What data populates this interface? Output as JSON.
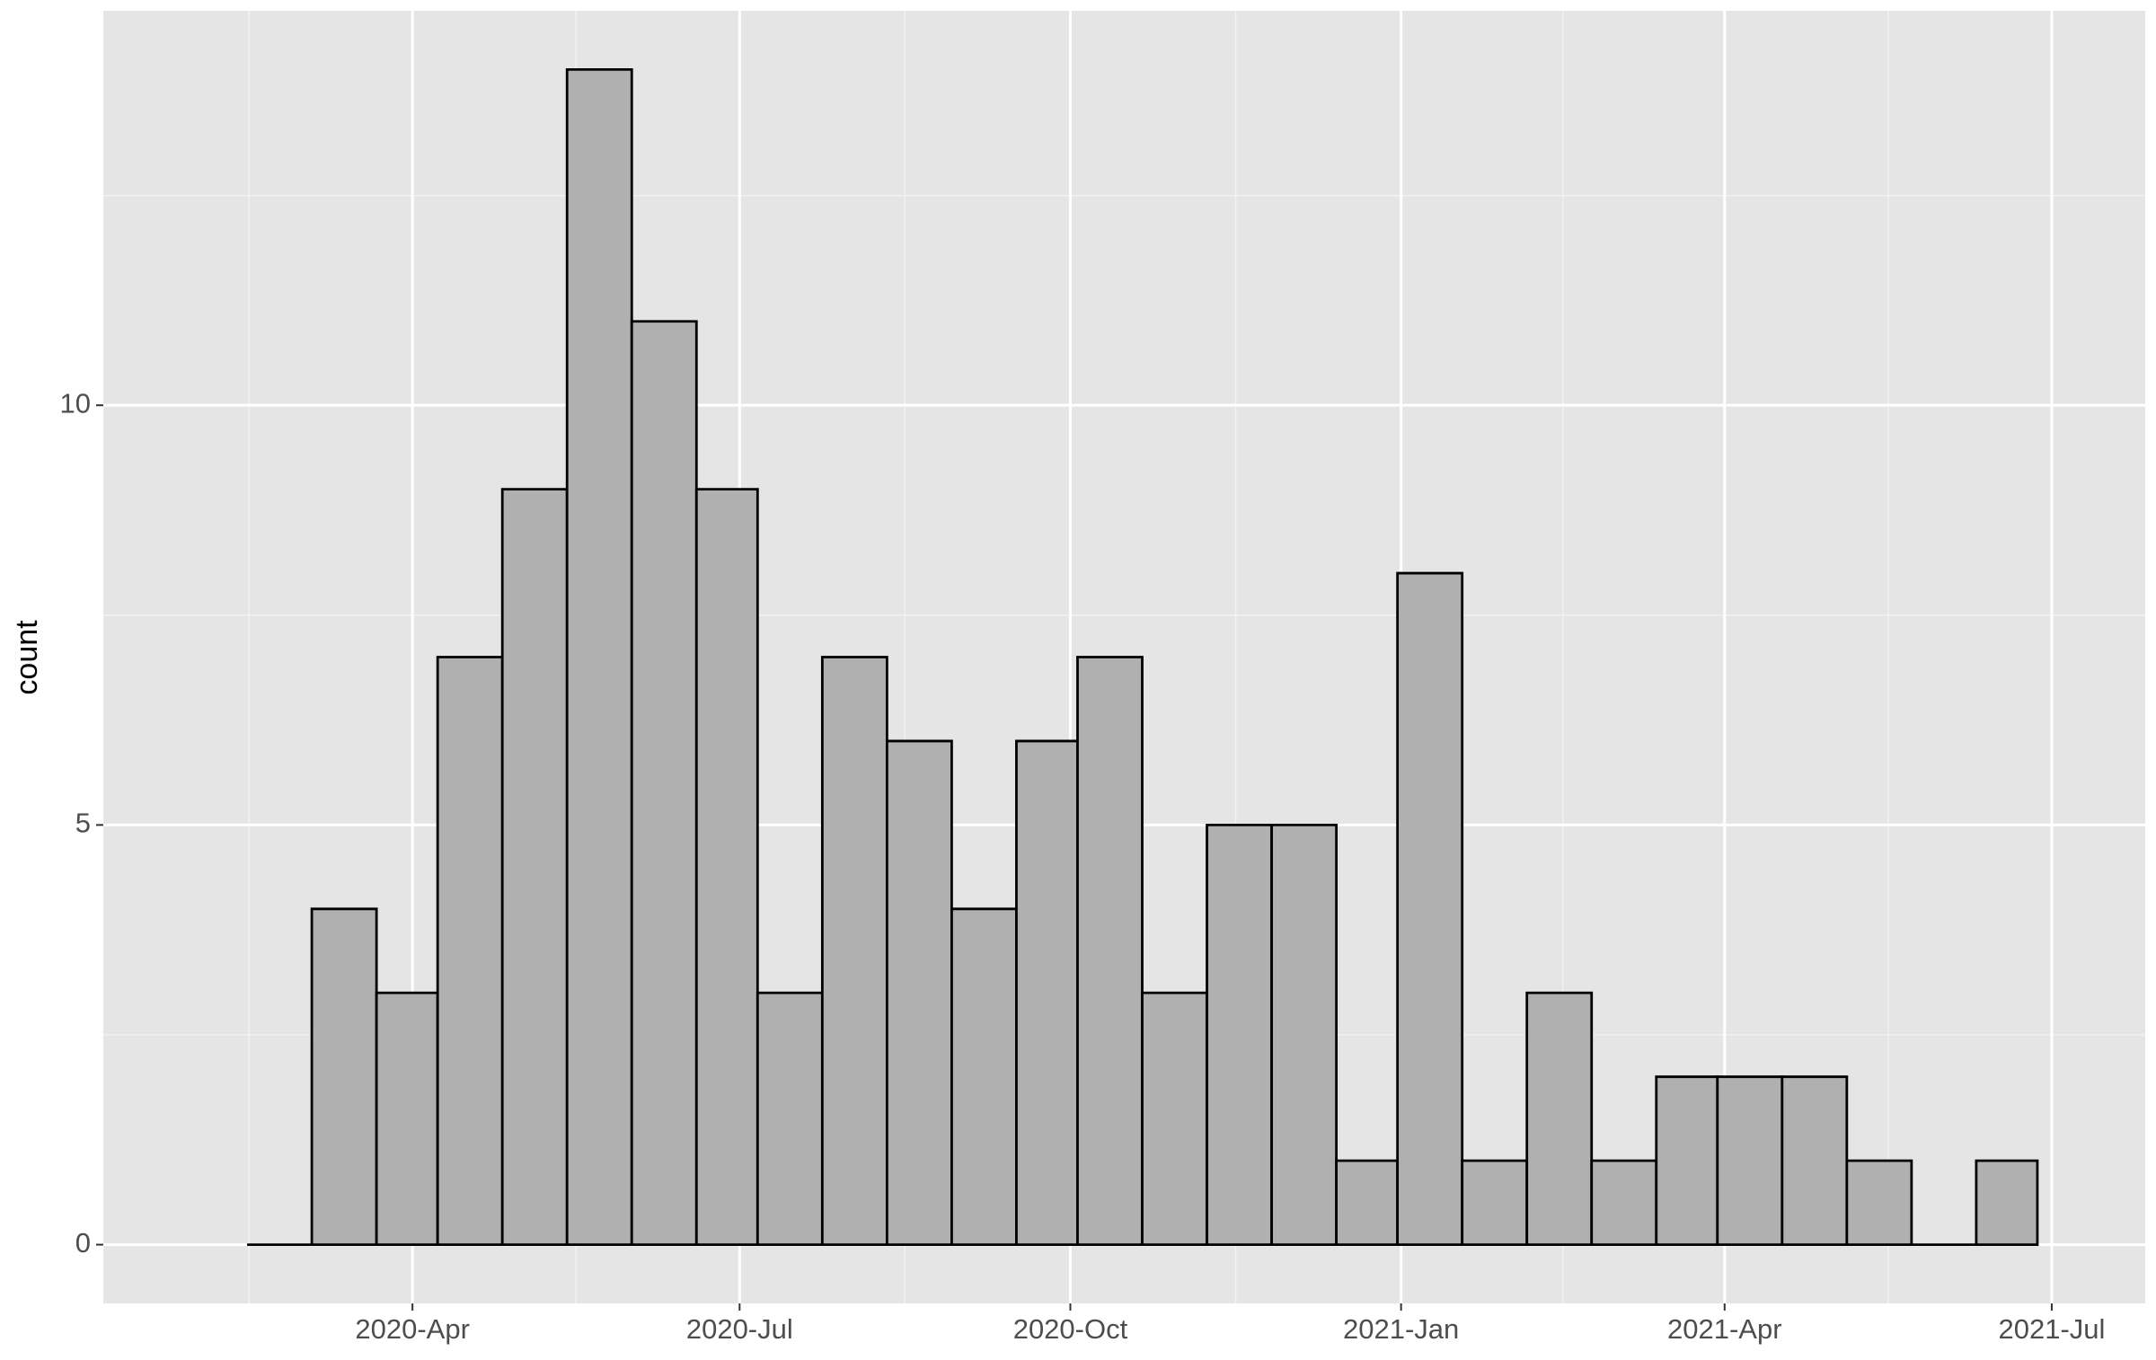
{
  "chart_data": {
    "type": "histogram",
    "y_label": "count",
    "bins": [
      "2020-02-15",
      "2020-03-04",
      "2020-03-22",
      "2020-04-08",
      "2020-04-26",
      "2020-05-14",
      "2020-06-01",
      "2020-06-19",
      "2020-07-06",
      "2020-07-24",
      "2020-08-11",
      "2020-08-29",
      "2020-09-16",
      "2020-10-03",
      "2020-10-21",
      "2020-11-08",
      "2020-11-26",
      "2020-12-14",
      "2020-12-31",
      "2021-01-18",
      "2021-02-05",
      "2021-02-23",
      "2021-03-13",
      "2021-03-30",
      "2021-04-17",
      "2021-05-05",
      "2021-05-23",
      "2021-06-10",
      "2021-06-27"
    ],
    "values": [
      0,
      4,
      3,
      7,
      9,
      14,
      11,
      9,
      3,
      7,
      6,
      4,
      6,
      7,
      3,
      5,
      5,
      1,
      8,
      1,
      3,
      1,
      2,
      2,
      2,
      1,
      0,
      1
    ],
    "color": "#b0b0b0",
    "edge_color": "#000000",
    "xlim": [
      "2020-01-06",
      "2021-07-27"
    ],
    "xticks": [
      {
        "value": "2020-04-01",
        "label": "2020-Apr"
      },
      {
        "value": "2020-07-01",
        "label": "2020-Jul"
      },
      {
        "value": "2020-10-01",
        "label": "2020-Oct"
      },
      {
        "value": "2021-01-01",
        "label": "2021-Jan"
      },
      {
        "value": "2021-04-01",
        "label": "2021-Apr"
      },
      {
        "value": "2021-07-01",
        "label": "2021-Jul"
      }
    ],
    "ylim": [
      -0.7,
      14.7
    ],
    "yticks": [
      0,
      5,
      10
    ],
    "grid": true
  }
}
